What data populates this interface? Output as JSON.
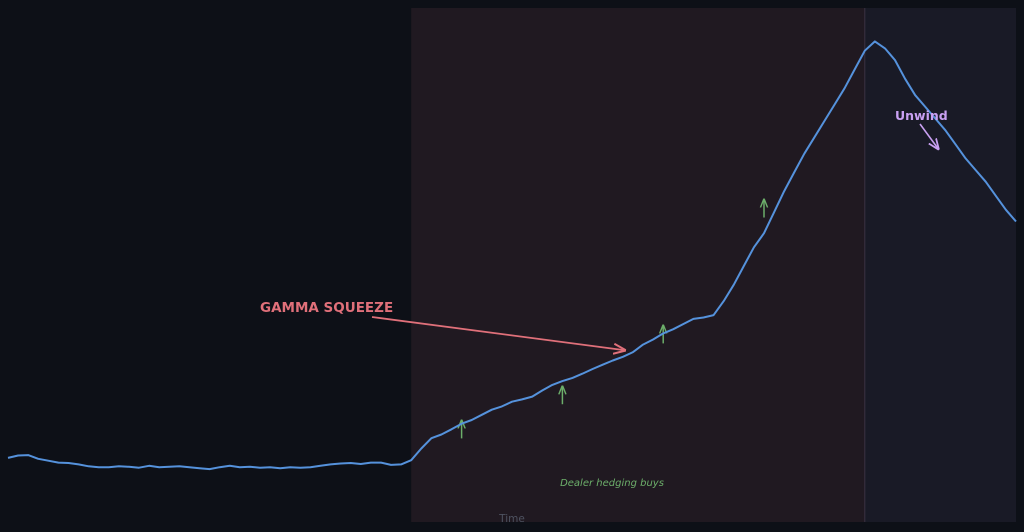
{
  "colors": {
    "background": "#0d1017",
    "squeeze_region": "#201921",
    "unwind_region": "#191a26",
    "region_divider": "#3a3344",
    "price_line": "#5592dc",
    "annotation_squeeze": "#e0707a",
    "annotation_unwind": "#c9a0f2",
    "hedging_arrows": "#6cae6a",
    "axis_label": "#4e5260"
  },
  "chart_data": {
    "type": "line",
    "title": "",
    "xlabel": "Time",
    "ylabel": "",
    "grid": false,
    "legend": "none",
    "xlim": [
      0,
      100
    ],
    "ylim": [
      0,
      100
    ],
    "series": [
      {
        "values_note": "",
        "x": [
          0,
          1,
          2,
          3,
          4,
          5,
          6,
          7,
          8,
          9,
          10,
          11,
          12,
          13,
          14,
          15,
          16,
          17,
          18,
          19,
          20,
          21,
          22,
          23,
          24,
          25,
          26,
          27,
          28,
          29,
          30,
          31,
          32,
          33,
          34,
          35,
          36,
          37,
          38,
          39,
          40,
          41,
          42,
          43,
          44,
          45,
          46,
          47,
          48,
          49,
          50,
          51,
          52,
          53,
          54,
          55,
          56,
          57,
          58,
          59,
          60,
          61,
          62,
          63,
          64,
          65,
          66,
          67,
          68,
          69,
          70,
          71,
          72,
          73,
          74,
          75,
          76,
          77,
          78,
          79,
          80,
          81,
          82,
          83,
          84,
          85,
          86,
          87,
          88,
          89,
          90,
          91,
          92,
          93,
          94,
          95,
          96,
          97,
          98,
          99,
          100
        ],
        "y": [
          9.0,
          9.5,
          9.6,
          8.8,
          8.4,
          8.0,
          7.9,
          7.6,
          7.2,
          7.0,
          7.0,
          7.2,
          7.1,
          6.9,
          7.3,
          7.0,
          7.1,
          7.2,
          7.0,
          6.8,
          6.6,
          7.0,
          7.3,
          7.0,
          7.1,
          6.9,
          7.0,
          6.8,
          7.0,
          6.9,
          7.0,
          7.3,
          7.6,
          7.8,
          7.9,
          7.7,
          8.0,
          8.0,
          7.5,
          7.6,
          8.5,
          11.0,
          13.2,
          14.0,
          15.1,
          16.3,
          17.1,
          18.2,
          19.3,
          20.0,
          21.0,
          21.5,
          22.1,
          23.4,
          24.6,
          25.4,
          26.1,
          27.0,
          28.0,
          28.9,
          29.8,
          30.6,
          31.6,
          33.2,
          34.3,
          35.6,
          36.5,
          37.6,
          38.7,
          39.0,
          39.5,
          42.5,
          46.0,
          50.0,
          54.0,
          57.0,
          61.5,
          66.0,
          70.0,
          74.0,
          77.5,
          81.0,
          84.5,
          88.0,
          92.0,
          96.0,
          98.0,
          96.5,
          94.0,
          90.0,
          86.5,
          84.0,
          81.5,
          79.0,
          76.0,
          73.0,
          70.5,
          68.0,
          65.0,
          62.0,
          59.5
        ]
      }
    ],
    "regions": [
      {
        "x_start": 40,
        "x_end": 85,
        "fill": "squeeze"
      },
      {
        "x_start": 85,
        "x_end": 100,
        "fill": "unwind"
      }
    ],
    "annotations": [
      {
        "id": "squeeze",
        "text": "GAMMA SQUEEZE",
        "point": [
          61.2,
          32
        ]
      },
      {
        "id": "unwind",
        "text": "Unwind",
        "point": [
          92,
          75
        ]
      },
      {
        "id": "hedging",
        "text": "Dealer hedging buys"
      }
    ],
    "hedging_arrow_points": [
      [
        45,
        15.3
      ],
      [
        55,
        22.6
      ],
      [
        65,
        35.6
      ],
      [
        75,
        62.5
      ]
    ]
  }
}
